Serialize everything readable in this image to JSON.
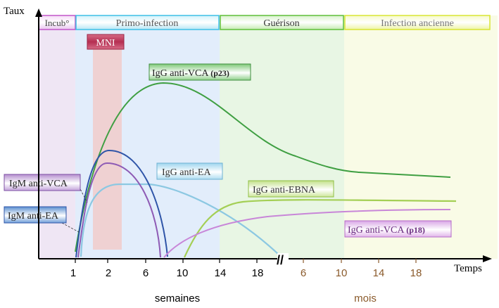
{
  "axes": {
    "y_title": "Taux",
    "x_title": "Temps",
    "weeks_label": "semaines",
    "months_label": "mois",
    "break_symbol": "//",
    "week_ticks": [
      "1",
      "2",
      "6",
      "10",
      "14",
      "18"
    ],
    "month_ticks": [
      "6",
      "10",
      "14",
      "18"
    ]
  },
  "phases": [
    {
      "id": "incub",
      "label": "Incub°",
      "color": "#c257c9",
      "bg": "#efe6f4"
    },
    {
      "id": "primo",
      "label": "Primo-infection",
      "color": "#3ec0e6",
      "bg": "#e3eefb"
    },
    {
      "id": "guerison",
      "label": "Guérison",
      "color": "#5fbf3a",
      "bg": "#e7f6e4"
    },
    {
      "id": "ancienne",
      "label": "Infection ancienne",
      "color": "#d9e535",
      "bg": "#f8fbe5"
    }
  ],
  "mni": {
    "label": "MNI",
    "color": "#c0395b",
    "band": "#f1cece"
  },
  "curves": [
    {
      "id": "igg-vca-p23",
      "label": "IgG anti-VCA",
      "suffix": "(p23)",
      "color": "#3f9f42"
    },
    {
      "id": "igm-vca",
      "label": "IgM anti-VCA",
      "suffix": "",
      "color": "#8e5bb5"
    },
    {
      "id": "igm-ea",
      "label": "IgM anti-EA",
      "suffix": "",
      "color": "#2f55a8"
    },
    {
      "id": "igg-ea",
      "label": "IgG anti-EA",
      "suffix": "",
      "color": "#86c3e0"
    },
    {
      "id": "igg-ebna",
      "label": "IgG anti-EBNA",
      "suffix": "",
      "color": "#a4cf55"
    },
    {
      "id": "igg-vca-p18",
      "label": "IgG anti-VCA",
      "suffix": "(p18)",
      "color": "#c886d8"
    }
  ],
  "colors": {
    "weeks_text": "#000000",
    "months_text": "#8a5a2b",
    "axis": "#000000"
  }
}
